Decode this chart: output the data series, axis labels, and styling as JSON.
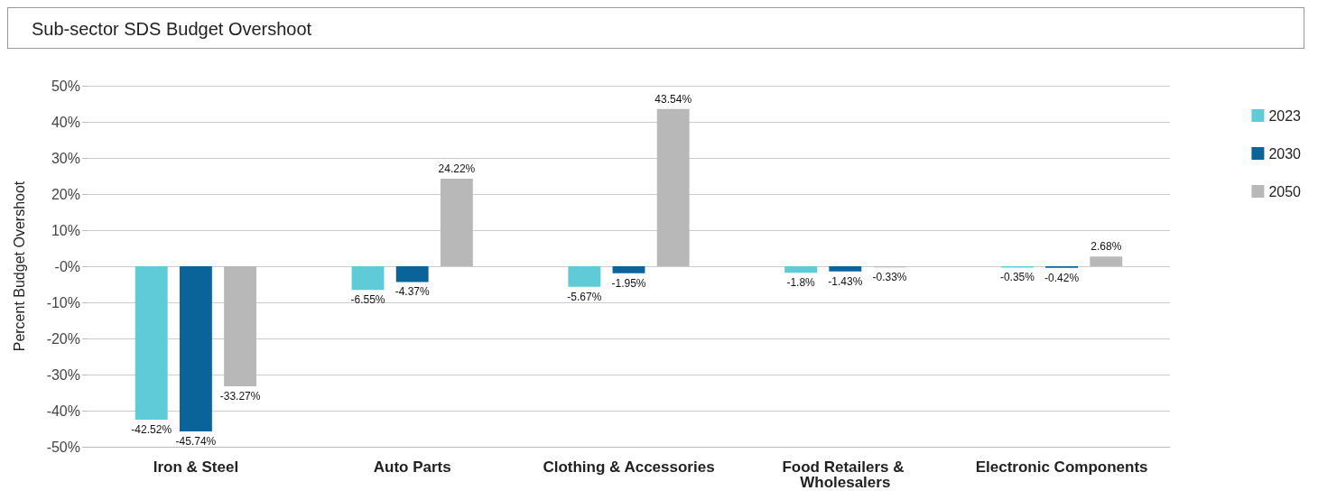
{
  "chart_data": {
    "type": "bar",
    "title": "Sub-sector SDS Budget Overshoot",
    "ylabel": "Percent Budget Overshoot",
    "categories": [
      "Iron & Steel",
      "Auto Parts",
      "Clothing & Accessories",
      "Food Retailers & Wholesalers",
      "Electronic Components"
    ],
    "series": [
      {
        "name": "2023",
        "color": "#5ecbd6",
        "values": [
          -42.52,
          -6.55,
          -5.67,
          -1.8,
          -0.35
        ],
        "value_labels": [
          "-42.52%",
          "-6.55%",
          "-5.67%",
          "-1.8%",
          "-0.35%"
        ]
      },
      {
        "name": "2030",
        "color": "#0a6399",
        "values": [
          -45.74,
          -4.37,
          -1.95,
          -1.43,
          -0.42
        ],
        "value_labels": [
          "-45.74%",
          "-4.37%",
          "-1.95%",
          "-1.43%",
          "-0.42%"
        ]
      },
      {
        "name": "2050",
        "color": "#b8b8b8",
        "values": [
          -33.27,
          24.22,
          43.54,
          -0.33,
          2.68
        ],
        "value_labels": [
          "-33.27%",
          "24.22%",
          "43.54%",
          "-0.33%",
          "2.68%"
        ]
      }
    ],
    "ylim": [
      -50,
      50
    ],
    "yticks": [
      {
        "value": -50,
        "label": "-50%"
      },
      {
        "value": -40,
        "label": "-40%"
      },
      {
        "value": -30,
        "label": "-30%"
      },
      {
        "value": -20,
        "label": "-20%"
      },
      {
        "value": -10,
        "label": "-10%"
      },
      {
        "value": 0,
        "label": "-0%"
      },
      {
        "value": 10,
        "label": "10%"
      },
      {
        "value": 20,
        "label": "20%"
      },
      {
        "value": 30,
        "label": "30%"
      },
      {
        "value": 40,
        "label": "40%"
      },
      {
        "value": 50,
        "label": "50%"
      }
    ],
    "grid": "y",
    "legend": "right"
  }
}
